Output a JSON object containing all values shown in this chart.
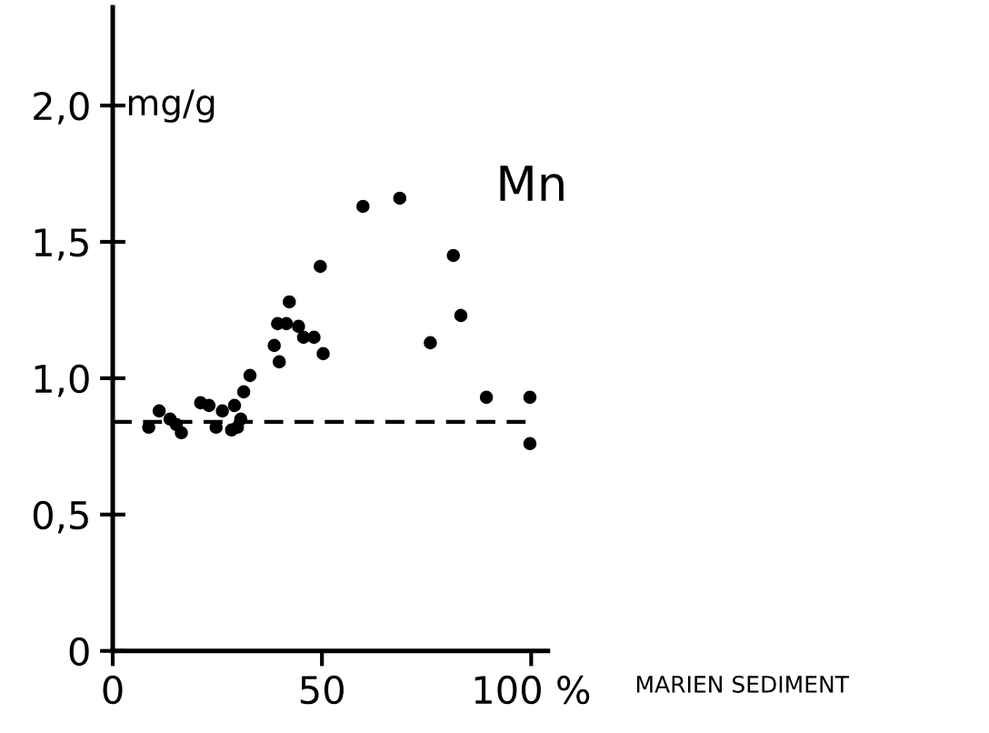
{
  "chart_data": {
    "type": "scatter",
    "x": [
      8.6,
      11.1,
      13.7,
      16.4,
      15.2,
      21,
      23,
      24.7,
      26.2,
      28.4,
      29.1,
      30.6,
      29.8,
      31.3,
      32.8,
      38.6,
      39.8,
      39.4,
      42.2,
      41.5,
      44.4,
      45.6,
      48.1,
      50.3,
      49.6,
      59.8,
      68.6,
      75.9,
      81.4,
      83.2,
      89.3,
      99.7,
      99.7
    ],
    "values": [
      0.82,
      0.88,
      0.85,
      0.8,
      0.83,
      0.91,
      0.9,
      0.82,
      0.88,
      0.81,
      0.9,
      0.85,
      0.82,
      0.95,
      1.01,
      1.12,
      1.06,
      1.2,
      1.28,
      1.2,
      1.19,
      1.15,
      1.15,
      1.09,
      1.41,
      1.63,
      1.66,
      1.13,
      1.45,
      1.23,
      0.93,
      0.93,
      0.76
    ],
    "color": "#000000",
    "marker": "circle",
    "ylabel": "mg/g",
    "xlabel": "MARIEN SEDIMENT",
    "annotations": [
      "Mn"
    ],
    "ref_lines": [
      {
        "axis": "y",
        "value": 0.84,
        "line_style": "dashed",
        "color": "#000000"
      }
    ],
    "xlim": [
      0,
      104
    ],
    "ylim": [
      0,
      2.36
    ],
    "xticks": [
      0,
      50,
      {
        "value": 100,
        "label": "100 %"
      }
    ],
    "yticks": [
      0,
      {
        "value": 0.5,
        "label": "0,5"
      },
      {
        "value": 1.0,
        "label": "1,0"
      },
      {
        "value": 1.5,
        "label": "1,5"
      },
      {
        "value": 2.0,
        "label": "2,0"
      }
    ],
    "grid": false,
    "legend": false
  }
}
